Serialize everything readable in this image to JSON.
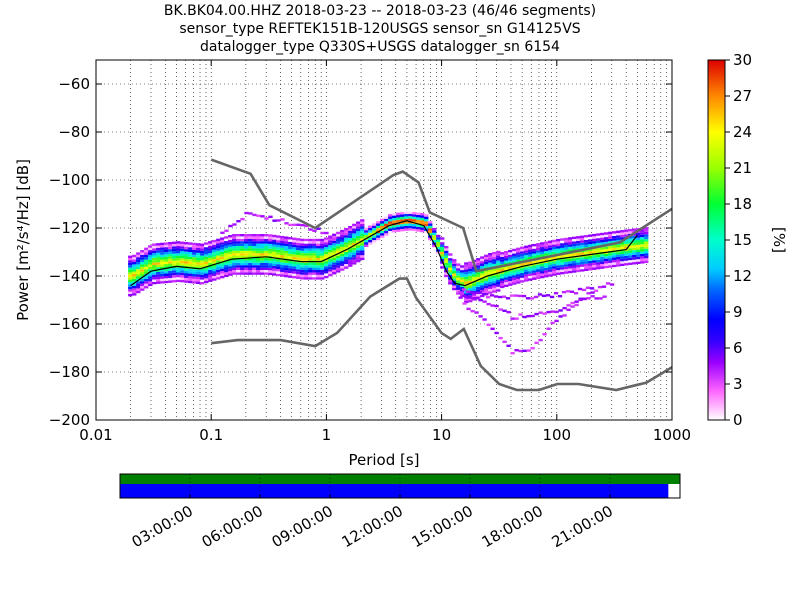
{
  "title": {
    "line1": "BK.BK04.00.HHZ   2018-03-23 -- 2018-03-23  (46/46 segments)",
    "line2": "sensor_type REFTEK151B-120USGS sensor_sn G14125VS",
    "line3": "datalogger_type Q330S+USGS datalogger_sn 6154"
  },
  "colorbar": {
    "label": "[%]",
    "ticks": [
      "0",
      "3",
      "6",
      "9",
      "12",
      "15",
      "18",
      "21",
      "24",
      "27",
      "30"
    ]
  },
  "colors": {
    "nhnm_nlnm": "#666666",
    "mode_line": "#000000",
    "coverage_top": "#008000",
    "coverage_bottom": "#0000ff"
  },
  "chart_data": [
    {
      "type": "heatmap",
      "xlabel": "Period [s]",
      "ylabel": "Power [m²/s⁴/Hz] [dB]",
      "xscale": "log",
      "xlim": [
        0.01,
        1000
      ],
      "ylim": [
        -200,
        -50
      ],
      "xticks": [
        "0.01",
        "0.1",
        "1",
        "10",
        "100",
        "1000"
      ],
      "yticks": [
        "−200",
        "−180",
        "−160",
        "−140",
        "−120",
        "−100",
        "−80",
        "−60"
      ],
      "colorbar_range": [
        0,
        30
      ],
      "grid": true,
      "series": [
        {
          "role": "nhnm",
          "points": [
            [
              0.1,
              -91.5
            ],
            [
              0.22,
              -97.4
            ],
            [
              0.32,
              -110.5
            ],
            [
              0.8,
              -120
            ],
            [
              3.8,
              -98
            ],
            [
              4.6,
              -96.5
            ],
            [
              6.3,
              -101
            ],
            [
              7.9,
              -113.5
            ],
            [
              15.4,
              -120
            ],
            [
              20,
              -138
            ],
            [
              354,
              -126
            ],
            [
              1000,
              -112
            ]
          ]
        },
        {
          "role": "nlnm",
          "points": [
            [
              0.1,
              -168
            ],
            [
              0.17,
              -166.7
            ],
            [
              0.4,
              -166.7
            ],
            [
              0.8,
              -169.2
            ],
            [
              1.24,
              -163.7
            ],
            [
              2.4,
              -148.6
            ],
            [
              4.3,
              -141.1
            ],
            [
              5,
              -141.1
            ],
            [
              6,
              -149
            ],
            [
              10,
              -163.8
            ],
            [
              12,
              -166.2
            ],
            [
              15.6,
              -162.1
            ],
            [
              21.9,
              -177.5
            ],
            [
              31.6,
              -185
            ],
            [
              45,
              -187.5
            ],
            [
              70,
              -187.5
            ],
            [
              101,
              -185
            ],
            [
              154,
              -185
            ],
            [
              328,
              -187.5
            ],
            [
              600,
              -184.4
            ],
            [
              1000,
              -178
            ]
          ]
        },
        {
          "role": "mode",
          "points": [
            [
              0.02,
              -144
            ],
            [
              0.03,
              -138
            ],
            [
              0.05,
              -136
            ],
            [
              0.08,
              -137
            ],
            [
              0.15,
              -133
            ],
            [
              0.3,
              -132
            ],
            [
              0.6,
              -134
            ],
            [
              0.9,
              -134
            ],
            [
              1.5,
              -129
            ],
            [
              2.5,
              -123
            ],
            [
              3.5,
              -119
            ],
            [
              5,
              -117
            ],
            [
              7,
              -119
            ],
            [
              9,
              -128
            ],
            [
              11,
              -138
            ],
            [
              13,
              -143
            ],
            [
              16,
              -144
            ],
            [
              25,
              -140
            ],
            [
              50,
              -136
            ],
            [
              100,
              -133
            ],
            [
              200,
              -131
            ],
            [
              400,
              -129
            ],
            [
              500,
              -123
            ]
          ]
        },
        {
          "role": "hist_core",
          "points": [
            [
              0.02,
              -140
            ],
            [
              0.03,
              -135
            ],
            [
              0.05,
              -134
            ],
            [
              0.08,
              -135
            ],
            [
              0.15,
              -131
            ],
            [
              0.3,
              -131
            ],
            [
              0.6,
              -133
            ],
            [
              0.9,
              -133
            ],
            [
              1.5,
              -128
            ],
            [
              2.5,
              -122
            ],
            [
              3.5,
              -118
            ],
            [
              5,
              -117
            ],
            [
              7,
              -118
            ],
            [
              9,
              -127
            ],
            [
              11,
              -136
            ],
            [
              13,
              -141
            ],
            [
              16,
              -143
            ],
            [
              25,
              -139
            ],
            [
              50,
              -135
            ],
            [
              100,
              -132
            ],
            [
              200,
              -130
            ],
            [
              400,
              -128
            ],
            [
              600,
              -127
            ]
          ]
        }
      ]
    },
    {
      "type": "bar",
      "role": "coverage",
      "xticks": [
        "03:00:00",
        "06:00:00",
        "09:00:00",
        "12:00:00",
        "15:00:00",
        "18:00:00",
        "21:00:00"
      ],
      "hours": [
        3,
        6,
        9,
        12,
        15,
        18,
        21
      ],
      "span_hours": [
        0,
        24
      ],
      "bars": [
        {
          "role": "segments",
          "start": 0,
          "end": 24
        },
        {
          "role": "data",
          "start": 0,
          "end": 23.5
        }
      ]
    }
  ]
}
